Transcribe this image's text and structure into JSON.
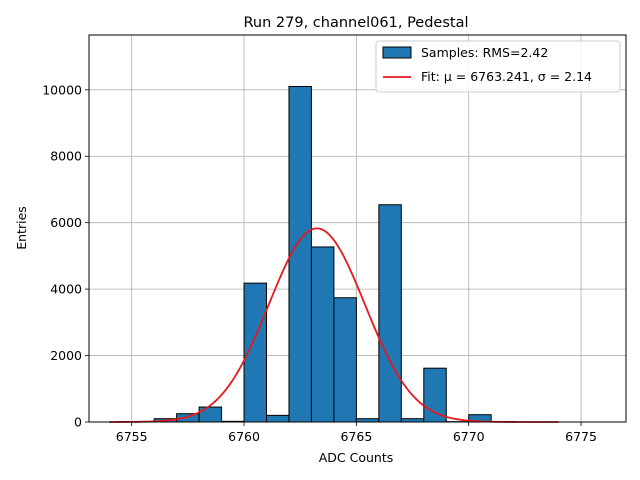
{
  "chart_data": {
    "type": "bar",
    "title": "Run 279, channel061, Pedestal",
    "xlabel": "ADC Counts",
    "ylabel": "Entries",
    "xlim": [
      6753.1,
      6777.0
    ],
    "ylim": [
      0,
      11650
    ],
    "xticks": [
      6755,
      6760,
      6765,
      6770,
      6775
    ],
    "yticks": [
      0,
      2000,
      4000,
      6000,
      8000,
      10000
    ],
    "grid": true,
    "legend_position": "top-right",
    "bin_width": 1.0,
    "bins": [
      {
        "left": 6756.0,
        "value": 100
      },
      {
        "left": 6757.0,
        "value": 250
      },
      {
        "left": 6758.0,
        "value": 450
      },
      {
        "left": 6759.0,
        "value": 20
      },
      {
        "left": 6760.0,
        "value": 4180
      },
      {
        "left": 6761.0,
        "value": 200
      },
      {
        "left": 6762.0,
        "value": 10100
      },
      {
        "left": 6763.0,
        "value": 5270
      },
      {
        "left": 6764.0,
        "value": 3740
      },
      {
        "left": 6765.0,
        "value": 100
      },
      {
        "left": 6766.0,
        "value": 6540
      },
      {
        "left": 6767.0,
        "value": 100
      },
      {
        "left": 6768.0,
        "value": 1620
      },
      {
        "left": 6769.0,
        "value": 10
      },
      {
        "left": 6770.0,
        "value": 220
      }
    ],
    "fit": {
      "mu": 6763.241,
      "sigma": 2.14,
      "amplitude": 5830,
      "x_range": [
        6754.0,
        6774.0
      ]
    },
    "series": [
      {
        "name": "Samples: RMS=2.42",
        "color": "#1f77b4",
        "edge_color": "#000000",
        "kind": "bar"
      },
      {
        "name": "Fit: μ = 6763.241, σ = 2.14",
        "color": "#e41a1c",
        "kind": "line"
      }
    ]
  }
}
